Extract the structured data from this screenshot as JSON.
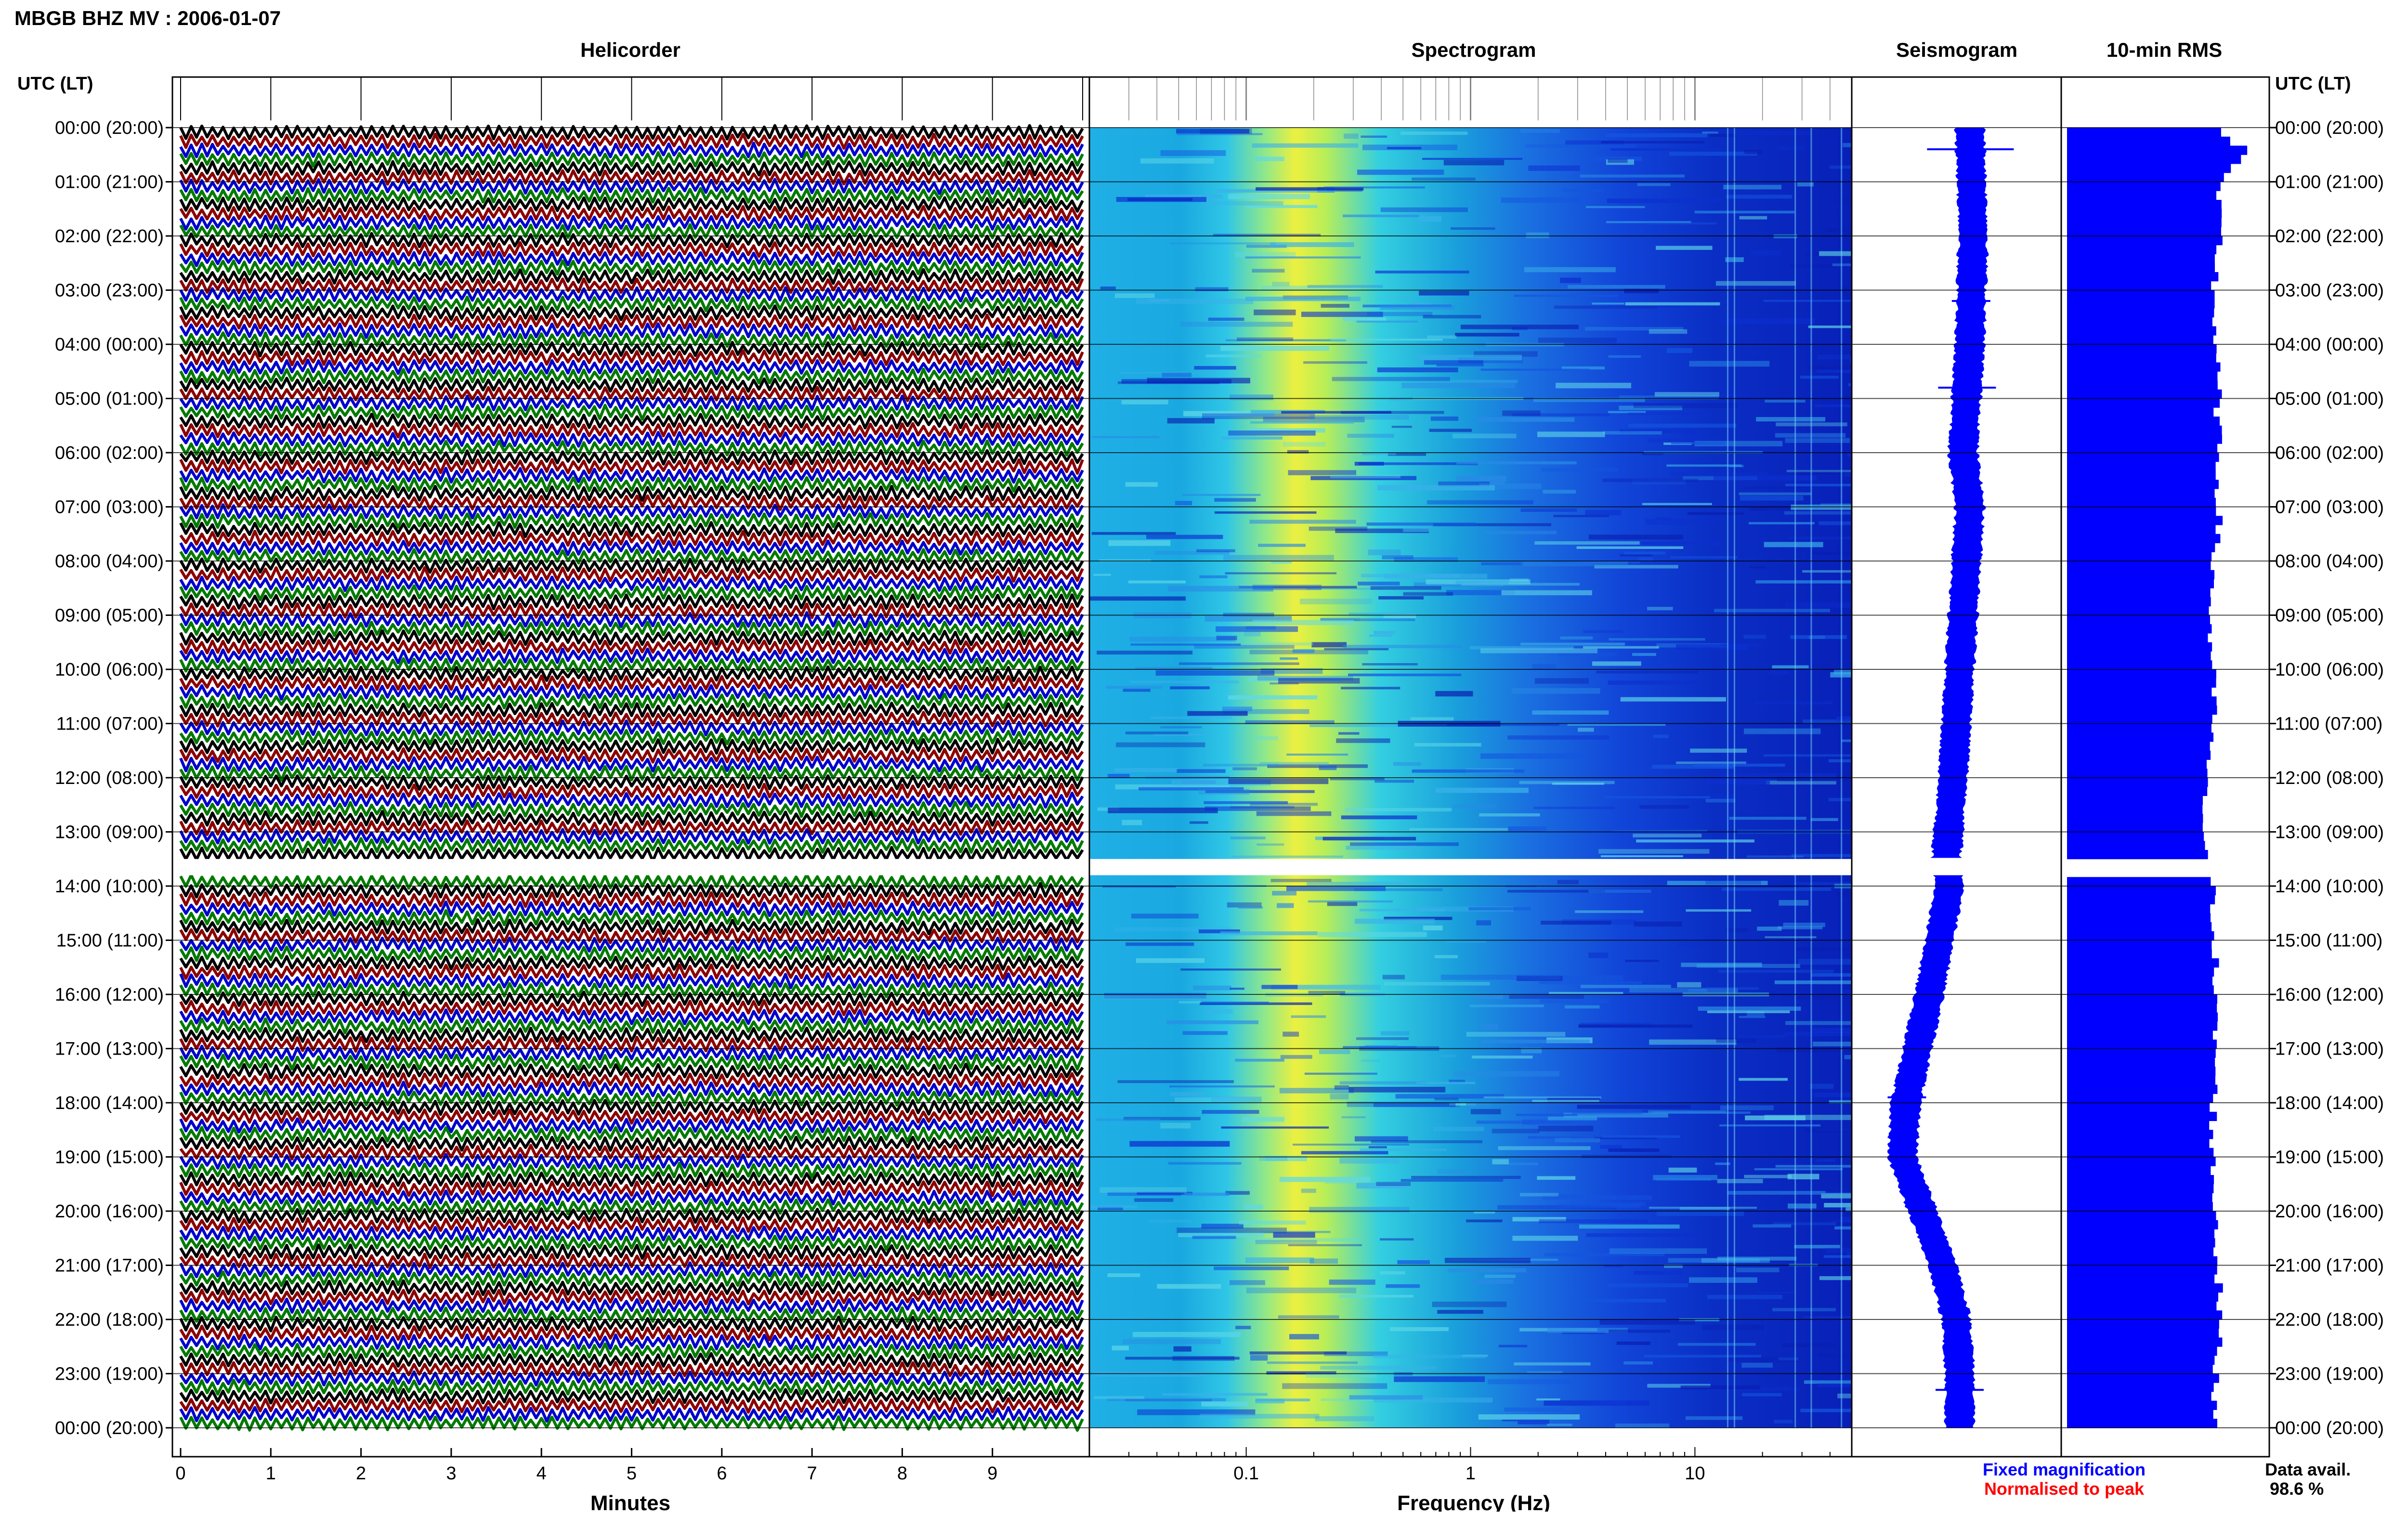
{
  "header": {
    "title": "MBGB BHZ MV : 2006-01-07",
    "utc_label_left": "UTC (LT)",
    "utc_label_right": "UTC (LT)"
  },
  "panels": {
    "helicorder": "Helicorder",
    "spectrogram": "Spectrogram",
    "seismogram": "Seismogram",
    "rms": "10-min RMS"
  },
  "hour_labels": [
    "00:00 (20:00)",
    "01:00 (21:00)",
    "02:00 (22:00)",
    "03:00 (23:00)",
    "04:00 (00:00)",
    "05:00 (01:00)",
    "06:00 (02:00)",
    "07:00 (03:00)",
    "08:00 (04:00)",
    "09:00 (05:00)",
    "10:00 (06:00)",
    "11:00 (07:00)",
    "12:00 (08:00)",
    "13:00 (09:00)",
    "14:00 (10:00)",
    "15:00 (11:00)",
    "16:00 (12:00)",
    "17:00 (13:00)",
    "18:00 (14:00)",
    "19:00 (15:00)",
    "20:00 (16:00)",
    "21:00 (17:00)",
    "22:00 (18:00)",
    "23:00 (19:00)",
    "00:00 (20:00)"
  ],
  "footer": {
    "helicorder_xlabel": "Minutes",
    "spectrogram_xlabel": "Frequency (Hz)",
    "legend_fixed": "Fixed magnification",
    "legend_normalised": "Normalised to peak",
    "data_avail_label": "Data avail.",
    "data_avail_value": "98.6 %"
  },
  "colors": {
    "trace_cycle": [
      "#000000",
      "#8b0000",
      "#0000cc",
      "#007a00"
    ],
    "seismogram": "#0000ff",
    "rms": "#0000ff",
    "legend_fixed": "#0000ff",
    "legend_normalised": "#ff0000"
  },
  "chart_data": [
    {
      "type": "line",
      "title": "Helicorder",
      "xlabel": "Minutes",
      "xlim": [
        0,
        10
      ],
      "x_ticks": [
        "0",
        "1",
        "2",
        "3",
        "4",
        "5",
        "6",
        "7",
        "8",
        "9"
      ],
      "hours_per_day": 24,
      "lines_per_hour": 6,
      "data_gap_hours": [
        13.5,
        13.8
      ]
    },
    {
      "type": "heatmap",
      "title": "Spectrogram",
      "xlabel": "Frequency (Hz)",
      "x_scale": "log",
      "xlim": [
        0.02,
        50
      ],
      "x_ticks": [
        "0.1",
        "1",
        "10"
      ],
      "peak_band_hz": [
        0.15,
        0.35
      ]
    },
    {
      "type": "line",
      "title": "Seismogram",
      "scale": "fixed magnification",
      "centre_drift_relative": [
        [
          0,
          0.0
        ],
        [
          2,
          -0.05
        ],
        [
          4,
          0.0
        ],
        [
          6,
          0.1
        ],
        [
          7,
          0.0
        ],
        [
          8,
          0.05
        ],
        [
          10,
          0.15
        ],
        [
          12,
          0.25
        ],
        [
          13.5,
          0.35
        ],
        [
          14,
          0.3
        ],
        [
          16,
          0.6
        ],
        [
          18,
          0.95
        ],
        [
          19,
          1.0
        ],
        [
          20,
          0.7
        ],
        [
          21,
          0.4
        ],
        [
          22,
          0.2
        ],
        [
          23,
          0.15
        ],
        [
          24,
          0.15
        ]
      ]
    },
    {
      "type": "bar",
      "title": "10-min RMS",
      "orientation": "horizontal",
      "normalisation": "peak",
      "bin_minutes": 10,
      "rms_profile_relative": [
        [
          0,
          0.78
        ],
        [
          0.5,
          0.95
        ],
        [
          1,
          0.78
        ],
        [
          2,
          0.8
        ],
        [
          3,
          0.77
        ],
        [
          4,
          0.78
        ],
        [
          5,
          0.79
        ],
        [
          6,
          0.79
        ],
        [
          7,
          0.8
        ],
        [
          8,
          0.77
        ],
        [
          9,
          0.75
        ],
        [
          10,
          0.76
        ],
        [
          11,
          0.77
        ],
        [
          12,
          0.72
        ],
        [
          13,
          0.72
        ],
        [
          13.5,
          0.72
        ],
        [
          14,
          0.76
        ],
        [
          15,
          0.78
        ],
        [
          16,
          0.77
        ],
        [
          17,
          0.78
        ],
        [
          18,
          0.77
        ],
        [
          19,
          0.76
        ],
        [
          20,
          0.78
        ],
        [
          21,
          0.79
        ],
        [
          22,
          0.8
        ],
        [
          23,
          0.78
        ],
        [
          24,
          0.78
        ]
      ]
    }
  ]
}
